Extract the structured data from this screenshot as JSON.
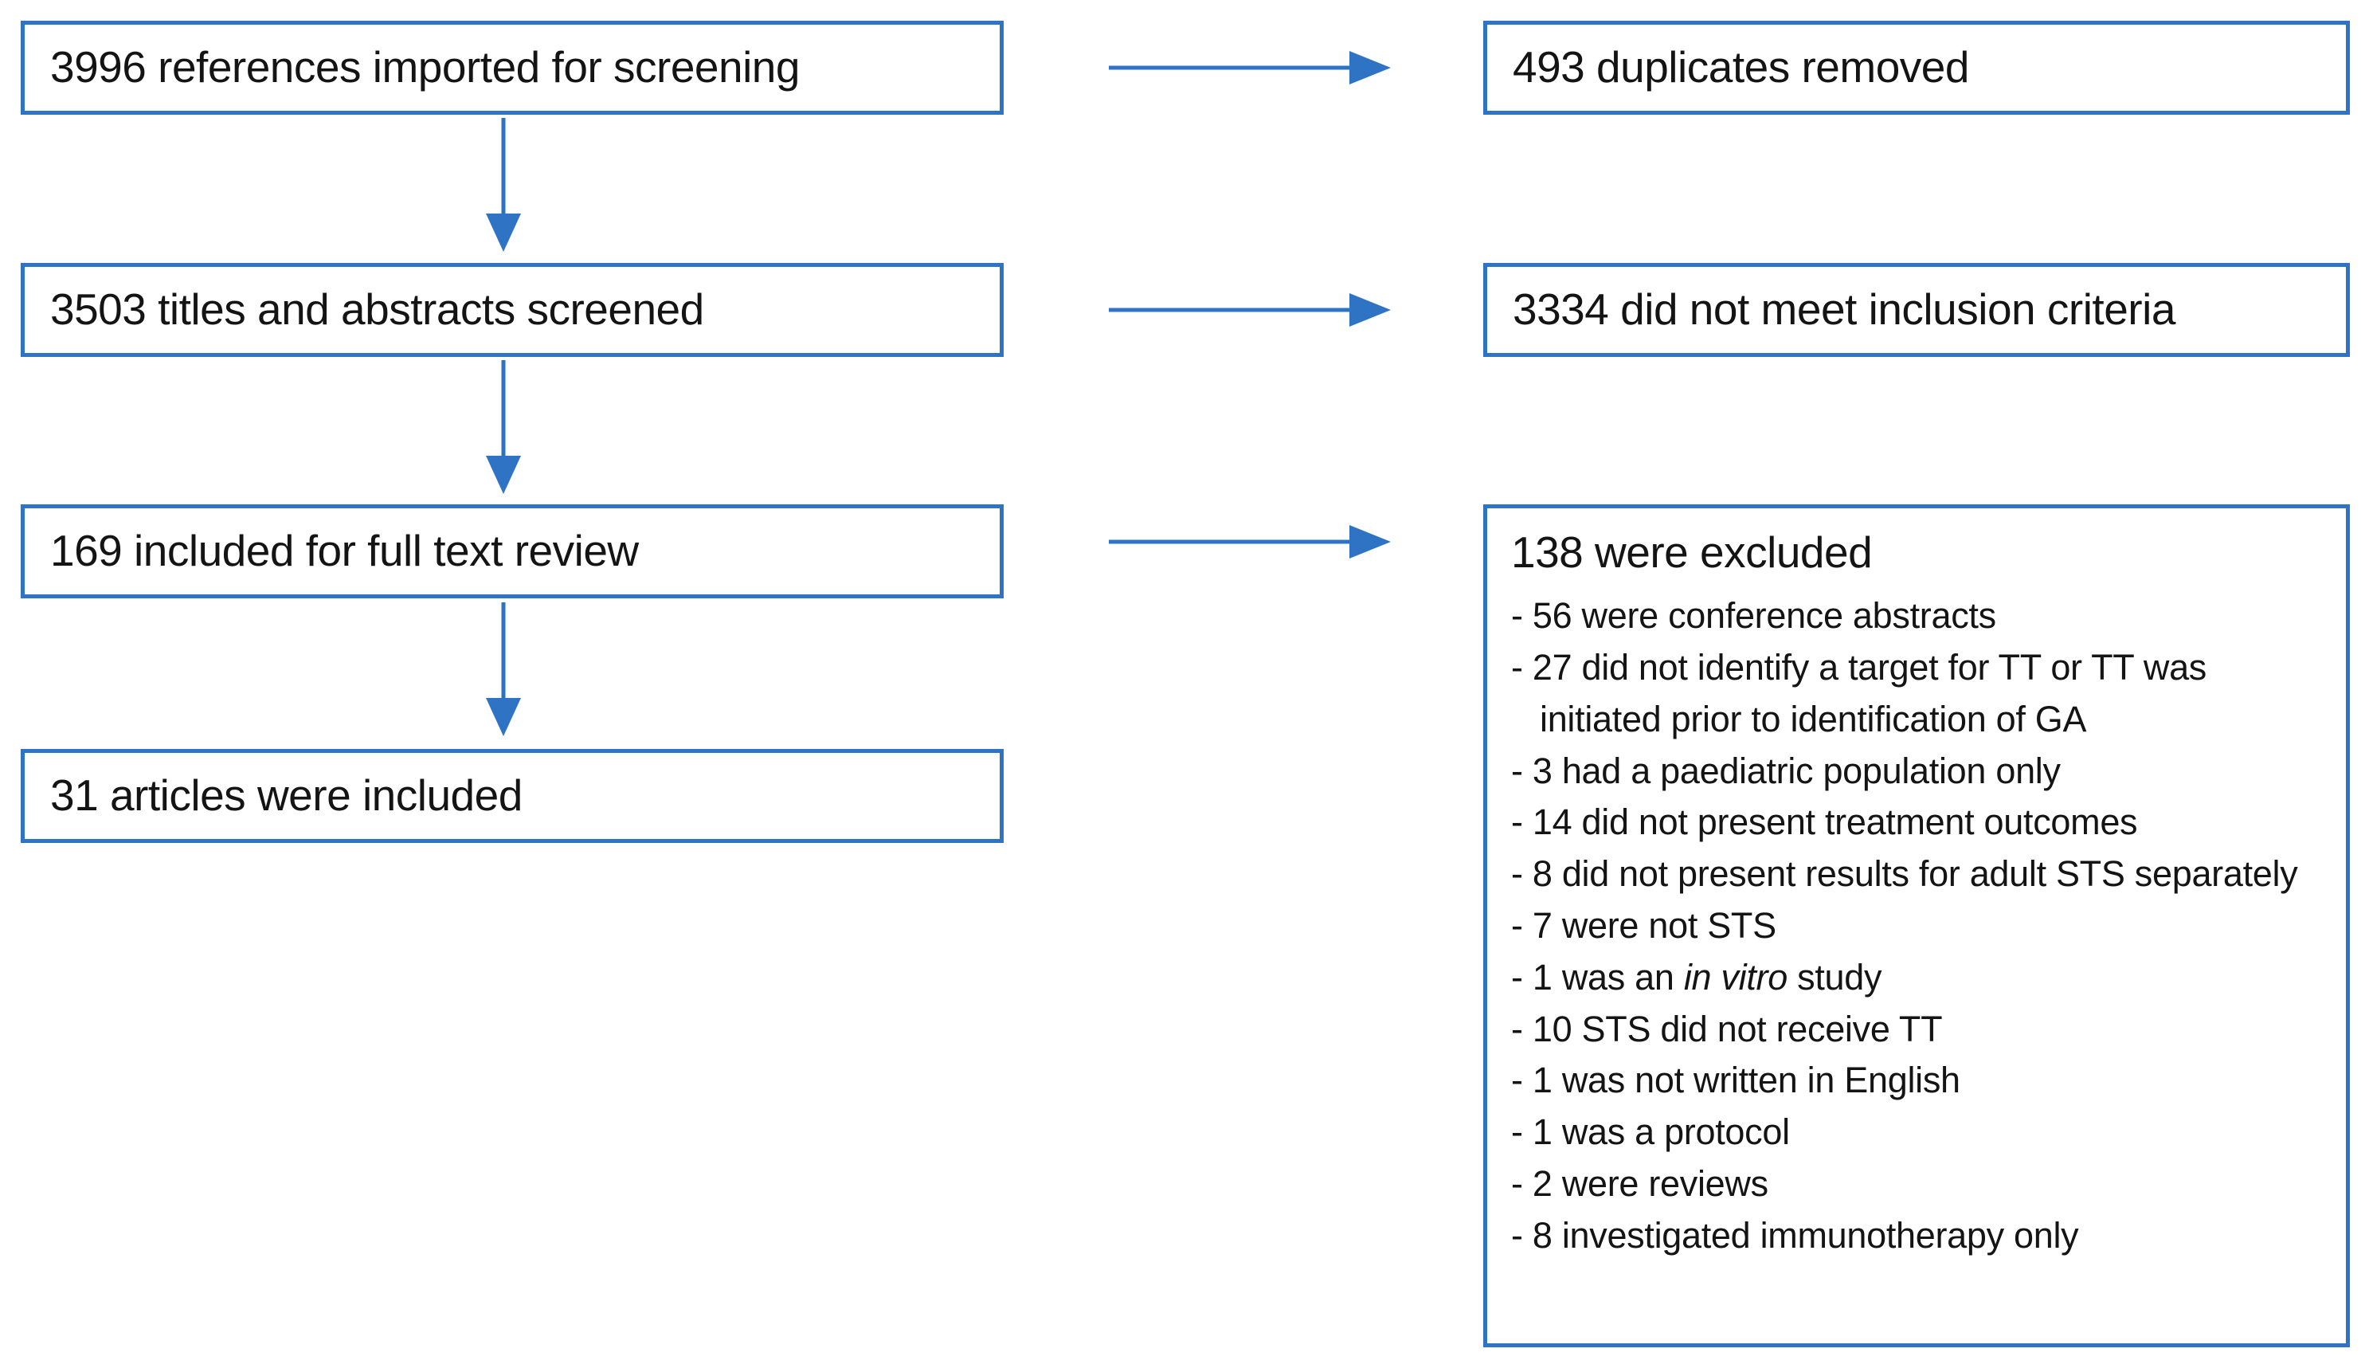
{
  "colors": {
    "accent": "#2f74c4",
    "box_border": "#2f74c4",
    "text": "#141414",
    "background": "#ffffff"
  },
  "flow": {
    "left_boxes": [
      {
        "label": "3996 references imported for screening"
      },
      {
        "label": "3503 titles and abstracts screened"
      },
      {
        "label": "169 included for full text review"
      },
      {
        "label": "31 articles were included"
      }
    ],
    "right_boxes": [
      {
        "label": "493 duplicates removed"
      },
      {
        "label": "3334 did not meet inclusion criteria"
      }
    ],
    "excluded_box": {
      "title": "138 were excluded",
      "bullet": "-",
      "items": [
        [
          [
            "56 were conference abstracts",
            "normal"
          ]
        ],
        [
          [
            "27 did not identify a target for TT or TT was initiated prior to identification of GA",
            "normal"
          ]
        ],
        [
          [
            "3 had a paediatric population only",
            "normal"
          ]
        ],
        [
          [
            "14 did not present treatment outcomes",
            "normal"
          ]
        ],
        [
          [
            "8 did not present results for adult STS separately",
            "normal"
          ]
        ],
        [
          [
            "7 were not STS",
            "normal"
          ]
        ],
        [
          [
            "1 was an ",
            "normal"
          ],
          [
            "in vitro",
            "italic"
          ],
          [
            " study",
            "normal"
          ]
        ],
        [
          [
            "10 STS did not receive TT",
            "normal"
          ]
        ],
        [
          [
            "1 was not written in English",
            "normal"
          ]
        ],
        [
          [
            "1 was a protocol",
            "normal"
          ]
        ],
        [
          [
            "2 were reviews",
            "normal"
          ]
        ],
        [
          [
            "8 investigated immunotherapy only",
            "normal"
          ]
        ]
      ]
    }
  }
}
